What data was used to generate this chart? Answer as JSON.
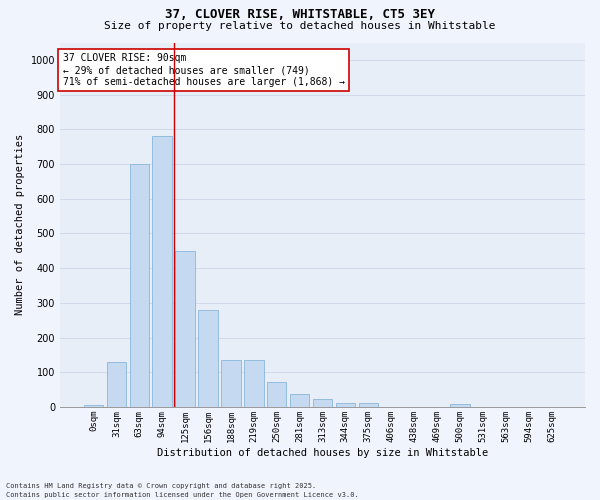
{
  "title": "37, CLOVER RISE, WHITSTABLE, CT5 3EY",
  "subtitle": "Size of property relative to detached houses in Whitstable",
  "xlabel": "Distribution of detached houses by size in Whitstable",
  "ylabel": "Number of detached properties",
  "bar_labels": [
    "0sqm",
    "31sqm",
    "63sqm",
    "94sqm",
    "125sqm",
    "156sqm",
    "188sqm",
    "219sqm",
    "250sqm",
    "281sqm",
    "313sqm",
    "344sqm",
    "375sqm",
    "406sqm",
    "438sqm",
    "469sqm",
    "500sqm",
    "531sqm",
    "563sqm",
    "594sqm",
    "625sqm"
  ],
  "bar_values": [
    5,
    130,
    700,
    780,
    450,
    280,
    135,
    135,
    72,
    38,
    22,
    10,
    10,
    1,
    0,
    0,
    8,
    0,
    0,
    0,
    0
  ],
  "bar_color": "#c5d9f0",
  "bar_edge_color": "#7aadd4",
  "grid_color": "#d0daea",
  "bg_color": "#e8eef8",
  "vline_color": "#cc0000",
  "vline_x": 3.5,
  "annotation_text": "37 CLOVER RISE: 90sqm\n← 29% of detached houses are smaller (749)\n71% of semi-detached houses are larger (1,868) →",
  "annotation_box_facecolor": "#ffffff",
  "annotation_box_edgecolor": "#cc0000",
  "ylim": [
    0,
    1050
  ],
  "yticks": [
    0,
    100,
    200,
    300,
    400,
    500,
    600,
    700,
    800,
    900,
    1000
  ],
  "footer_line1": "Contains HM Land Registry data © Crown copyright and database right 2025.",
  "footer_line2": "Contains public sector information licensed under the Open Government Licence v3.0.",
  "fig_facecolor": "#f0f4fc",
  "title_fontsize": 9,
  "subtitle_fontsize": 8,
  "ylabel_fontsize": 7.5,
  "xlabel_fontsize": 7.5,
  "tick_fontsize": 6.5,
  "ytick_fontsize": 7,
  "annotation_fontsize": 7,
  "footer_fontsize": 5
}
